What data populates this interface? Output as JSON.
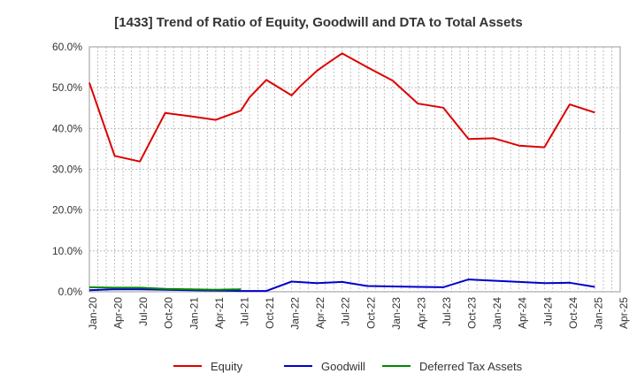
{
  "chart_data": {
    "type": "line",
    "title": "[1433]  Trend of Ratio of Equity, Goodwill and DTA to Total Assets",
    "xlabel": "",
    "ylabel": "",
    "x_ticks": [
      "Jan-20",
      "Apr-20",
      "Jul-20",
      "Oct-20",
      "Jan-21",
      "Apr-21",
      "Jul-21",
      "Oct-21",
      "Jan-22",
      "Apr-22",
      "Jul-22",
      "Oct-22",
      "Jan-23",
      "Apr-23",
      "Jul-23",
      "Oct-23",
      "Jan-24",
      "Apr-24",
      "Jul-24",
      "Oct-24",
      "Jan-25",
      "Apr-25"
    ],
    "y_ticks": [
      "0.0%",
      "10.0%",
      "20.0%",
      "30.0%",
      "40.0%",
      "50.0%",
      "60.0%"
    ],
    "ylim": [
      0,
      60
    ],
    "grid": true,
    "legend_position": "bottom",
    "series": [
      {
        "name": "Equity",
        "color": "#dd0000",
        "points": [
          [
            "2020-01",
            51.2
          ],
          [
            "2020-04",
            33.3
          ],
          [
            "2020-07",
            31.9
          ],
          [
            "2020-10",
            43.8
          ],
          [
            "2021-01",
            43.0
          ],
          [
            "2021-04",
            42.1
          ],
          [
            "2021-07",
            44.4
          ],
          [
            "2021-08",
            47.6
          ],
          [
            "2021-10",
            51.9
          ],
          [
            "2022-01",
            48.1
          ],
          [
            "2022-02",
            50.3
          ],
          [
            "2022-04",
            54.1
          ],
          [
            "2022-05",
            55.6
          ],
          [
            "2022-07",
            58.4
          ],
          [
            "2022-10",
            55.0
          ],
          [
            "2023-01",
            51.7
          ],
          [
            "2023-04",
            46.1
          ],
          [
            "2023-07",
            45.1
          ],
          [
            "2023-10",
            37.4
          ],
          [
            "2024-01",
            37.6
          ],
          [
            "2024-04",
            35.8
          ],
          [
            "2024-07",
            35.4
          ],
          [
            "2024-10",
            45.9
          ],
          [
            "2025-01",
            43.9
          ]
        ]
      },
      {
        "name": "Goodwill",
        "color": "#0000cc",
        "points": [
          [
            "2020-01",
            0.4
          ],
          [
            "2020-04",
            0.6
          ],
          [
            "2020-07",
            0.6
          ],
          [
            "2020-10",
            0.5
          ],
          [
            "2021-01",
            0.4
          ],
          [
            "2021-04",
            0.3
          ],
          [
            "2021-07",
            0.2
          ],
          [
            "2021-10",
            0.2
          ],
          [
            "2022-01",
            2.5
          ],
          [
            "2022-04",
            2.1
          ],
          [
            "2022-07",
            2.4
          ],
          [
            "2022-10",
            1.4
          ],
          [
            "2023-01",
            1.3
          ],
          [
            "2023-04",
            1.2
          ],
          [
            "2023-07",
            1.1
          ],
          [
            "2023-10",
            3.0
          ],
          [
            "2024-01",
            2.7
          ],
          [
            "2024-04",
            2.4
          ],
          [
            "2024-07",
            2.1
          ],
          [
            "2024-10",
            2.2
          ],
          [
            "2025-01",
            1.2
          ]
        ]
      },
      {
        "name": "Deferred Tax Assets",
        "color": "#008800",
        "points": [
          [
            "2020-01",
            1.1
          ],
          [
            "2020-04",
            1.0
          ],
          [
            "2020-07",
            1.0
          ],
          [
            "2020-10",
            0.7
          ],
          [
            "2021-01",
            0.6
          ],
          [
            "2021-04",
            0.5
          ],
          [
            "2021-07",
            0.6
          ]
        ]
      }
    ]
  }
}
